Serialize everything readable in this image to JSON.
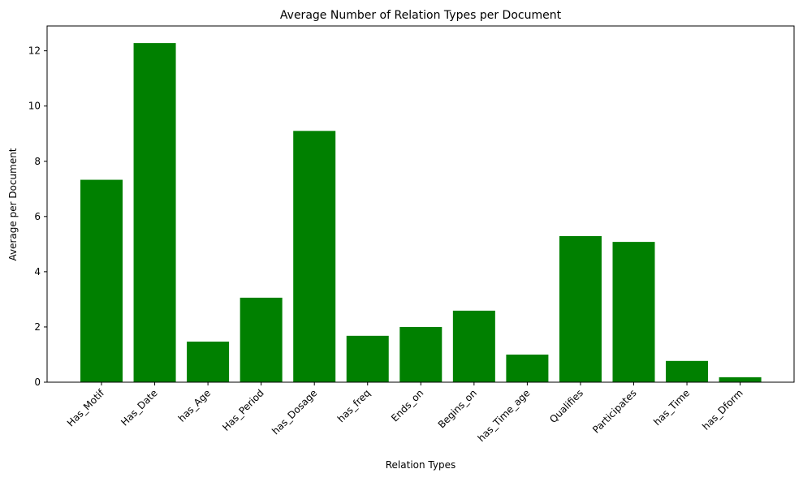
{
  "chart_data": {
    "type": "bar",
    "title": "Average Number of Relation Types per Document",
    "xlabel": "Relation Types",
    "ylabel": "Average per Document",
    "categories": [
      "Has_Motif",
      "Has_Date",
      "has_Age",
      "Has_Period",
      "has_Dosage",
      "has_freq",
      "Ends_on",
      "Begins_on",
      "has_Time_age",
      "Qualifies",
      "Participates",
      "has_Time",
      "has_Dform"
    ],
    "values": [
      7.33,
      12.28,
      1.47,
      3.06,
      9.1,
      1.68,
      2.0,
      2.59,
      1.0,
      5.29,
      5.08,
      0.77,
      0.18
    ],
    "ylim": [
      0,
      12.9
    ],
    "yticks": [
      0,
      2,
      4,
      6,
      8,
      10,
      12
    ],
    "bar_color": "#008000",
    "grid": false,
    "legend": false
  }
}
